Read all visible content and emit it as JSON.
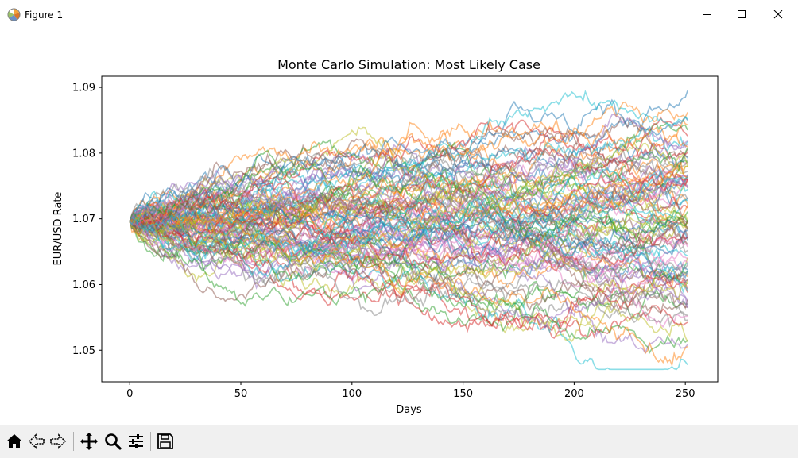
{
  "window": {
    "title": "Figure 1",
    "controls": [
      "minimize-icon",
      "maximize-icon",
      "close-icon"
    ]
  },
  "toolbar": {
    "buttons": [
      {
        "name": "home-button",
        "icon": "home-icon"
      },
      {
        "name": "back-button",
        "icon": "back-arrow-icon"
      },
      {
        "name": "forward-button",
        "icon": "forward-arrow-icon"
      },
      {
        "name": "pan-button",
        "icon": "move-icon"
      },
      {
        "name": "zoom-button",
        "icon": "magnifier-icon"
      },
      {
        "name": "configure-subplots-button",
        "icon": "sliders-icon"
      },
      {
        "name": "save-button",
        "icon": "floppy-disk-icon"
      }
    ]
  },
  "chart_data": {
    "type": "line",
    "title": "Monte Carlo Simulation: Most Likely Case",
    "xlabel": "Days",
    "ylabel": "EUR/USD Rate",
    "xlim": [
      -12.6,
      264.6
    ],
    "ylim": [
      1.0452,
      1.0917
    ],
    "xticks": [
      0,
      50,
      100,
      150,
      200,
      250
    ],
    "xtick_labels": [
      "0",
      "50",
      "100",
      "150",
      "200",
      "250"
    ],
    "yticks": [
      1.05,
      1.06,
      1.07,
      1.08,
      1.09
    ],
    "ytick_labels": [
      "1.05",
      "1.06",
      "1.07",
      "1.08",
      "1.09"
    ],
    "grid": false,
    "legend": "none",
    "start_value": 1.0696,
    "n_days": 252,
    "n_paths": 100,
    "series_colors": [
      "#1f77b4",
      "#ff7f0e",
      "#2ca02c",
      "#d62728",
      "#9467bd",
      "#8c564b",
      "#e377c2",
      "#7f7f7f",
      "#bcbd22",
      "#17becf"
    ],
    "line_alpha": 0.5,
    "final_values_sample": [
      1.0895,
      1.0843,
      1.0835,
      1.0826,
      1.0814,
      1.0806,
      1.0785,
      1.0772,
      1.0758,
      1.0745,
      1.0731,
      1.0722,
      1.0711,
      1.0698,
      1.0686,
      1.0672,
      1.0661,
      1.0652,
      1.0641,
      1.0633,
      1.0622,
      1.0612,
      1.0601,
      1.0588,
      1.0575,
      1.0566,
      1.0552,
      1.0546,
      1.0513,
      1.0478
    ],
    "max_observed": 1.0905,
    "min_observed": 1.0471
  }
}
